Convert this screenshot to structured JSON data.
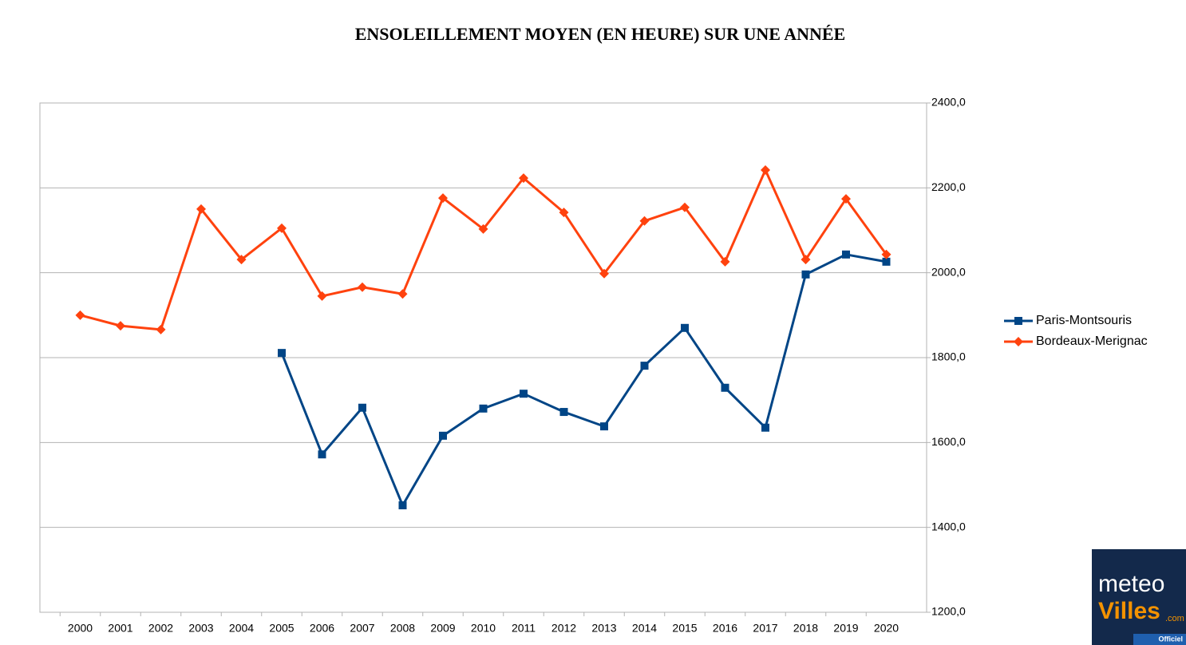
{
  "chart_data": {
    "type": "line",
    "title": "ENSOLEILLEMENT MOYEN (EN HEURE) SUR UNE ANNÉE",
    "categories": [
      "2000",
      "2001",
      "2002",
      "2003",
      "2004",
      "2005",
      "2006",
      "2007",
      "2008",
      "2009",
      "2010",
      "2011",
      "2012",
      "2013",
      "2014",
      "2015",
      "2016",
      "2017",
      "2018",
      "2019",
      "2020"
    ],
    "series": [
      {
        "name": "Paris-Montsouris",
        "color": "#004586",
        "marker": "square",
        "values": [
          null,
          null,
          null,
          null,
          null,
          1811,
          1572,
          1682,
          1452,
          1616,
          1680,
          1715,
          1672,
          1638,
          1781,
          1870,
          1729,
          1635,
          1996,
          2043,
          2026
        ]
      },
      {
        "name": "Bordeaux-Merignac",
        "color": "#ff420e",
        "marker": "diamond",
        "values": [
          1900,
          1875,
          1866,
          2150,
          2031,
          2105,
          1945,
          1966,
          1950,
          2176,
          2103,
          2223,
          2142,
          1998,
          2122,
          2154,
          2026,
          2242,
          2031,
          2174,
          2043
        ]
      }
    ],
    "ylim": [
      1200,
      2400
    ],
    "yticks": [
      {
        "value": 1200,
        "label": "1200,0"
      },
      {
        "value": 1400,
        "label": "1400,0"
      },
      {
        "value": 1600,
        "label": "1600,0"
      },
      {
        "value": 1800,
        "label": "1800,0"
      },
      {
        "value": 2000,
        "label": "2000,0"
      },
      {
        "value": 2200,
        "label": "2200,0"
      },
      {
        "value": 2400,
        "label": "2400,0"
      }
    ],
    "grid": true,
    "legend": "right"
  },
  "logo": {
    "line1": "meteo",
    "line2": "Villes",
    "suffix": ".com",
    "tag": "Officiel"
  }
}
